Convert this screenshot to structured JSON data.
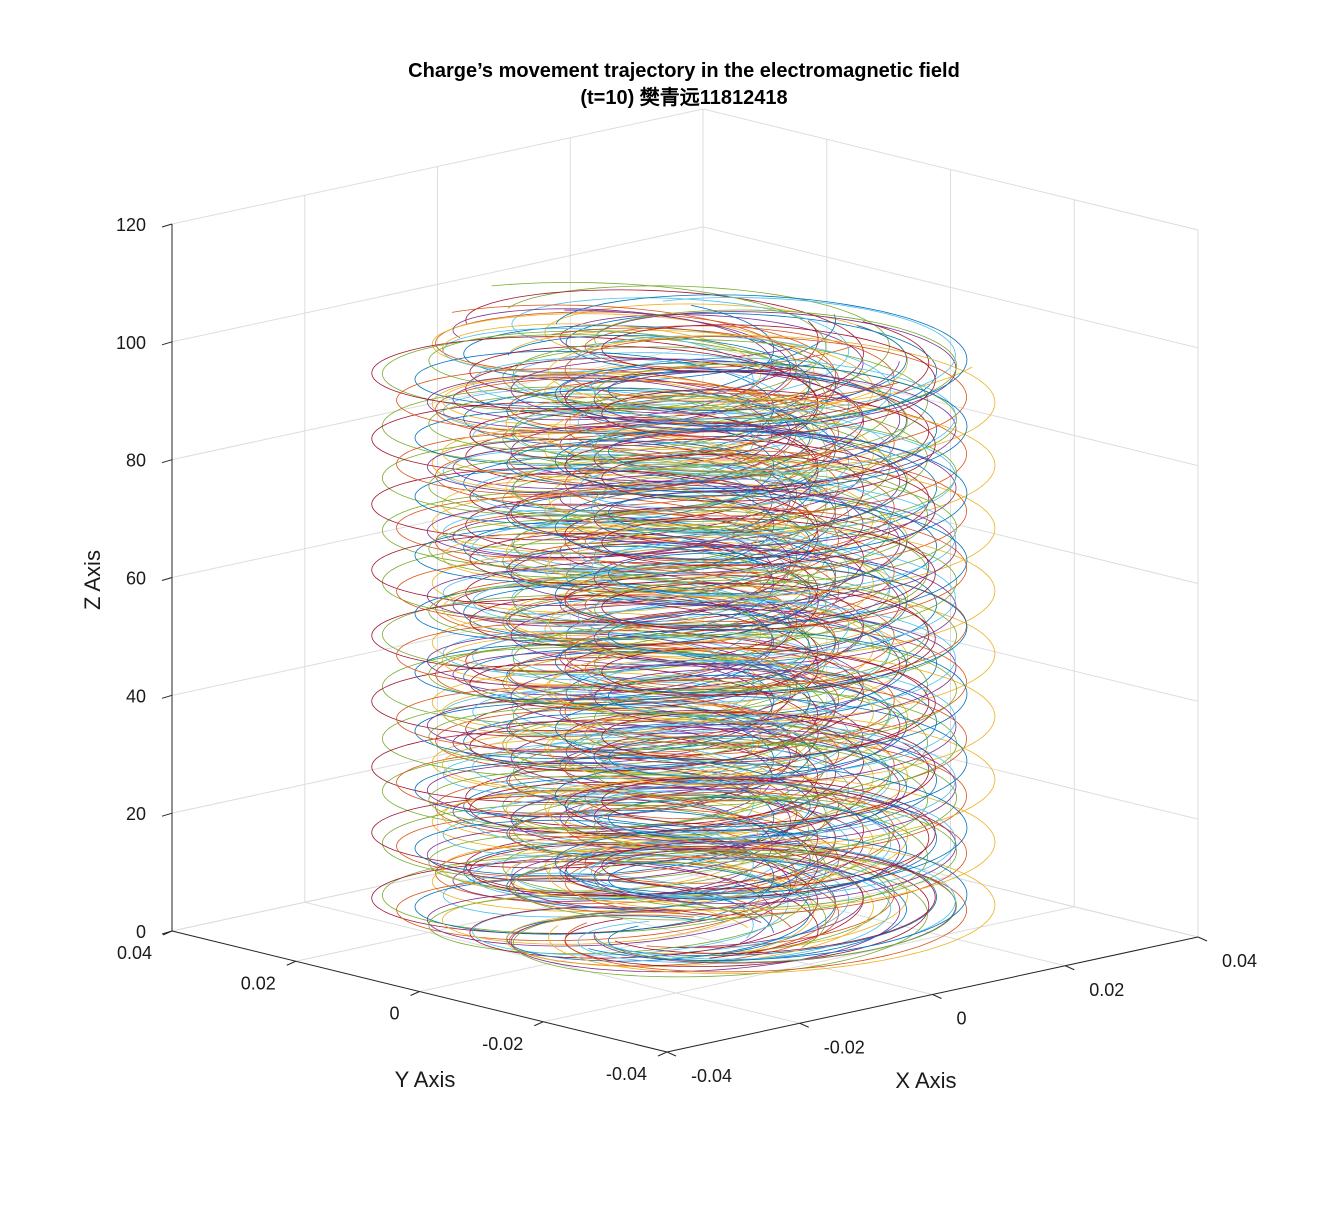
{
  "chart_data": {
    "type": "line3d",
    "title": "Charge’s movement trajectory in the electromagnetic field",
    "subtitle": "(t=10) 樊青远11812418",
    "xlabel": "X Axis",
    "ylabel": "Y Axis",
    "zlabel": "Z Axis",
    "xlim": [
      -0.04,
      0.04
    ],
    "ylim": [
      -0.04,
      0.04
    ],
    "zlim": [
      0,
      120
    ],
    "xticks": [
      "-0.04",
      "-0.02",
      "0",
      "0.02",
      "0.04"
    ],
    "yticks": [
      "-0.04",
      "-0.02",
      "0",
      "0.02",
      "0.04"
    ],
    "zticks": [
      "0",
      "20",
      "40",
      "60",
      "80",
      "100",
      "120"
    ],
    "grid": true,
    "series_colors": [
      "#0072BD",
      "#D95319",
      "#EDB120",
      "#7E2F8E",
      "#77AC30",
      "#4DBEEE",
      "#A2142F"
    ],
    "helix": {
      "radius_range": [
        0.016,
        0.025
      ],
      "z_end": 101,
      "turns": 10,
      "center_offset": 0.01
    }
  }
}
